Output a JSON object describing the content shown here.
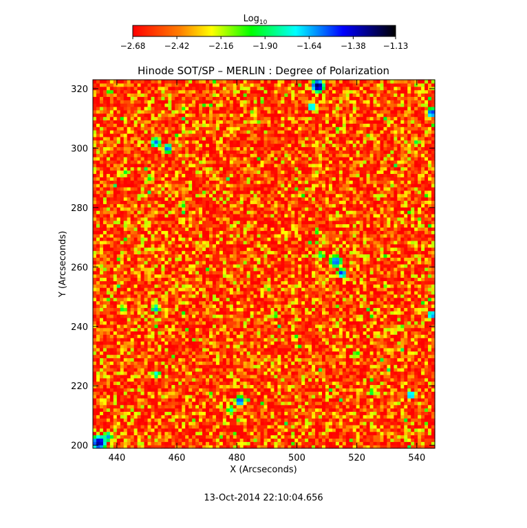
{
  "chart_data": {
    "type": "heatmap",
    "title": "Hinode SOT/SP – MERLIN : Degree of Polarization",
    "xlabel": "X (Arcseconds)",
    "ylabel": "Y (Arcseconds)",
    "xlim": [
      432,
      546
    ],
    "ylim": [
      199,
      323
    ],
    "x_ticks": [
      "440",
      "460",
      "480",
      "500",
      "520",
      "540"
    ],
    "x_tick_values": [
      440,
      460,
      480,
      500,
      520,
      540
    ],
    "y_ticks": [
      "200",
      "220",
      "240",
      "260",
      "280",
      "300",
      "320"
    ],
    "y_tick_values": [
      200,
      220,
      240,
      260,
      280,
      300,
      320
    ],
    "colorbar": {
      "label_main": "Log",
      "label_sub": "10",
      "range": [
        -2.68,
        -1.13
      ],
      "ticks": [
        "-2.68",
        "-2.42",
        "-2.16",
        "-1.90",
        "-1.64",
        "-1.38",
        "-1.13"
      ],
      "tick_values": [
        -2.68,
        -2.42,
        -2.16,
        -1.9,
        -1.64,
        -1.38,
        -1.13
      ],
      "colormap": [
        "#ff0000",
        "#ff7f00",
        "#ffff00",
        "#00ff00",
        "#00ffff",
        "#0000ff",
        "#000000"
      ]
    },
    "patches": [
      {
        "x": 507,
        "y": 321,
        "r": 2.6,
        "v": -1.22
      },
      {
        "x": 505,
        "y": 314,
        "r": 1.8,
        "v": -1.6
      },
      {
        "x": 545,
        "y": 312,
        "r": 2.0,
        "v": -1.45
      },
      {
        "x": 453,
        "y": 302,
        "r": 2.0,
        "v": -1.55
      },
      {
        "x": 457,
        "y": 300,
        "r": 1.8,
        "v": -1.5
      },
      {
        "x": 451,
        "y": 290,
        "r": 1.4,
        "v": -1.95
      },
      {
        "x": 443,
        "y": 292,
        "r": 1.4,
        "v": -1.95
      },
      {
        "x": 513,
        "y": 262,
        "r": 2.4,
        "v": -1.5
      },
      {
        "x": 515,
        "y": 258,
        "r": 1.8,
        "v": -1.45
      },
      {
        "x": 508,
        "y": 264,
        "r": 1.6,
        "v": -1.85
      },
      {
        "x": 453,
        "y": 246,
        "r": 1.6,
        "v": -1.6
      },
      {
        "x": 442,
        "y": 246,
        "r": 1.4,
        "v": -1.9
      },
      {
        "x": 545,
        "y": 244,
        "r": 1.6,
        "v": -1.5
      },
      {
        "x": 453,
        "y": 224,
        "r": 1.4,
        "v": -1.7
      },
      {
        "x": 481,
        "y": 215,
        "r": 2.0,
        "v": -1.45
      },
      {
        "x": 538,
        "y": 217,
        "r": 1.6,
        "v": -1.5
      },
      {
        "x": 478,
        "y": 212,
        "r": 1.6,
        "v": -1.8
      },
      {
        "x": 434,
        "y": 201,
        "r": 3.0,
        "v": -1.3
      },
      {
        "x": 437,
        "y": 203,
        "r": 1.8,
        "v": -1.6
      },
      {
        "x": 520,
        "y": 231,
        "r": 1.4,
        "v": -1.95
      },
      {
        "x": 525,
        "y": 218,
        "r": 1.4,
        "v": -1.9
      },
      {
        "x": 462,
        "y": 281,
        "r": 1.3,
        "v": -1.95
      },
      {
        "x": 540,
        "y": 302,
        "r": 1.3,
        "v": -1.9
      },
      {
        "x": 493,
        "y": 244,
        "r": 1.2,
        "v": -1.95
      }
    ]
  },
  "timestamp": "13-Oct-2014 22:10:04.656"
}
